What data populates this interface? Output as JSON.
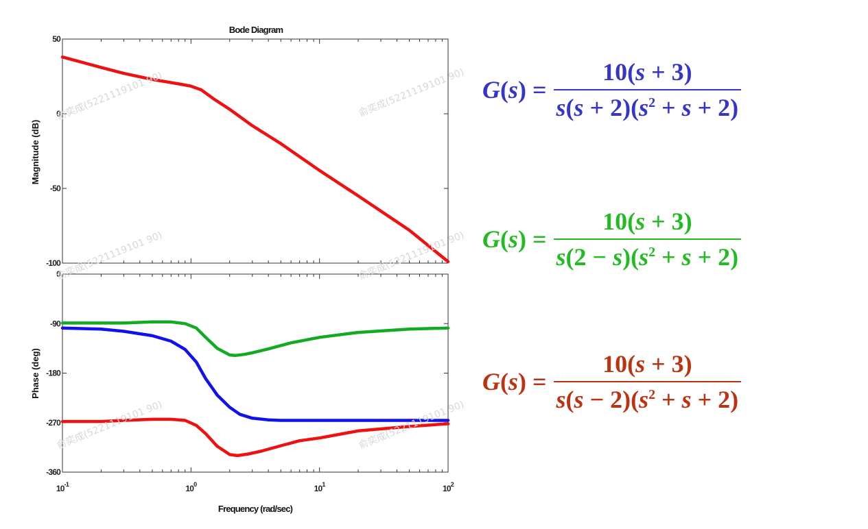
{
  "chart_data": [
    {
      "type": "line",
      "title": "Bode Diagram",
      "xlabel": "",
      "ylabel": "Magnitude (dB)",
      "xscale": "log",
      "xlim": [
        0.1,
        100
      ],
      "ylim": [
        -100,
        50
      ],
      "yticks": [
        50,
        0,
        -50,
        -100
      ],
      "grid": false,
      "series": [
        {
          "color": "#ee1111",
          "x": [
            0.1,
            0.2,
            0.3,
            0.5,
            0.8,
            1.0,
            1.2,
            1.5,
            2.0,
            3.0,
            5.0,
            10,
            20,
            50,
            100
          ],
          "y": [
            38,
            31,
            27,
            23,
            20,
            18.5,
            16,
            10,
            3,
            -8,
            -20,
            -38,
            -55,
            -78,
            -99
          ]
        }
      ]
    },
    {
      "type": "line",
      "title": "",
      "xlabel": "Frequency (rad/sec)",
      "ylabel": "Phase (deg)",
      "xscale": "log",
      "xlim": [
        0.1,
        100
      ],
      "ylim": [
        -360,
        0
      ],
      "yticks": [
        0,
        -90,
        -180,
        -270,
        -360
      ],
      "xticks": [
        {
          "base": "10",
          "exp": "-1",
          "value": 0.1
        },
        {
          "base": "10",
          "exp": "0",
          "value": 1
        },
        {
          "base": "10",
          "exp": "1",
          "value": 10
        },
        {
          "base": "10",
          "exp": "2",
          "value": 100
        }
      ],
      "grid": false,
      "series": [
        {
          "color": "#11aa22",
          "x": [
            0.1,
            0.2,
            0.3,
            0.5,
            0.7,
            0.9,
            1.1,
            1.3,
            1.6,
            2.0,
            2.2,
            2.6,
            3.0,
            4.0,
            6.0,
            10,
            20,
            50,
            100
          ],
          "y": [
            -89,
            -89,
            -89,
            -87,
            -87,
            -90,
            -98,
            -115,
            -135,
            -147,
            -148,
            -146,
            -143,
            -136,
            -125,
            -115,
            -106,
            -100,
            -98
          ]
        },
        {
          "color": "#1111ee",
          "x": [
            0.1,
            0.2,
            0.3,
            0.5,
            0.7,
            0.9,
            1.1,
            1.3,
            1.6,
            2.0,
            2.4,
            3.0,
            4.0,
            5.0,
            10,
            100
          ],
          "y": [
            -98,
            -100,
            -104,
            -112,
            -122,
            -137,
            -160,
            -190,
            -220,
            -242,
            -255,
            -262,
            -265,
            -266,
            -266,
            -266
          ]
        },
        {
          "color": "#ee1111",
          "x": [
            0.1,
            0.2,
            0.3,
            0.5,
            0.7,
            0.9,
            1.1,
            1.3,
            1.6,
            2.0,
            2.3,
            2.8,
            3.5,
            5.0,
            7.0,
            10,
            20,
            50,
            100
          ],
          "y": [
            -268,
            -268,
            -266,
            -264,
            -264,
            -266,
            -275,
            -290,
            -313,
            -328,
            -330,
            -327,
            -322,
            -312,
            -303,
            -298,
            -285,
            -277,
            -272
          ]
        }
      ]
    }
  ],
  "watermark": "俞奕成(5221119101 90)",
  "formulas": [
    {
      "color": "#3535c8",
      "lhs_fn": "G",
      "lhs_var": "s",
      "eq": "=",
      "num": {
        "coef": "10(",
        "var": "s",
        "rest": " + 3)"
      },
      "den": {
        "a": "s",
        "b": "(",
        "c": "s",
        "d": " + 2)(",
        "e": "s",
        "sup": "2",
        "f": " + ",
        "g": "s",
        "h": " + 2)"
      }
    },
    {
      "color": "#22bb22",
      "lhs_fn": "G",
      "lhs_var": "s",
      "eq": "=",
      "num": {
        "coef": "10(",
        "var": "s",
        "rest": " + 3)"
      },
      "den": {
        "a": "s",
        "b": "(2 − ",
        "c": "s",
        "d": ")(",
        "e": "s",
        "sup": "2",
        "f": " + ",
        "g": "s",
        "h": " + 2)"
      }
    },
    {
      "color": "#bb3311",
      "lhs_fn": "G",
      "lhs_var": "s",
      "eq": "=",
      "num": {
        "coef": "10(",
        "var": "s",
        "rest": " + 3)"
      },
      "den": {
        "a": "s",
        "b": "(",
        "c": "s",
        "d": " − 2)(",
        "e": "s",
        "sup": "2",
        "f": " + ",
        "g": "s",
        "h": " + 2)"
      }
    }
  ]
}
